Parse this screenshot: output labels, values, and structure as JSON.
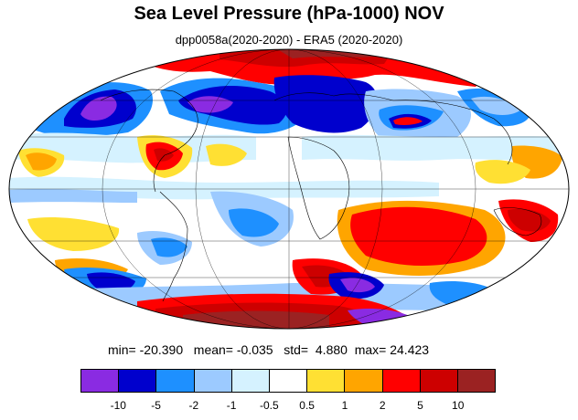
{
  "title": "Sea Level Pressure (hPa-1000) NOV",
  "subtitle": "dpp0058a(2020-2020) - ERA5 (2020-2020)",
  "stats": {
    "min_label": "min=",
    "min": "-20.390",
    "mean_label": "mean=",
    "mean": "-0.035",
    "std_label": "std=",
    "std": "4.880",
    "max_label": "max=",
    "max": "24.423"
  },
  "colorbar": {
    "colors": [
      "#8a2be2",
      "#0000cd",
      "#1e90ff",
      "#9ccaff",
      "#d5f2ff",
      "#ffffff",
      "#ffe033",
      "#ffa500",
      "#ff0000",
      "#cd0000",
      "#9b2222"
    ],
    "labels": [
      "-10",
      "-5",
      "-2",
      "-1",
      "-0.5",
      "0.5",
      "1",
      "2",
      "5",
      "10"
    ]
  },
  "map": {
    "projection": "Mollweide",
    "colors": {
      "deep_purple": "#8a2be2",
      "dark_blue": "#0000cd",
      "blue": "#1e90ff",
      "light_blue": "#9ccaff",
      "pale_blue": "#d5f2ff",
      "white": "#ffffff",
      "yellow": "#ffe033",
      "orange": "#ffa500",
      "red": "#ff0000",
      "dark_red": "#cd0000",
      "brown_red": "#9b2222"
    }
  }
}
